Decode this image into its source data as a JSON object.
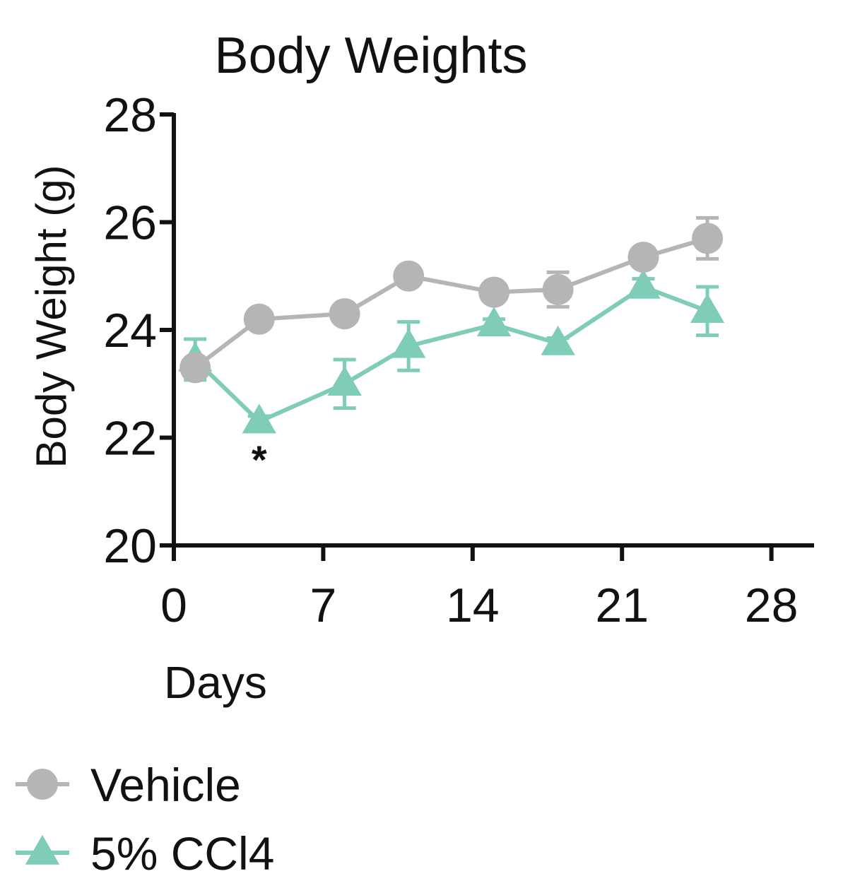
{
  "chart_data": {
    "type": "line",
    "title": "Body Weights",
    "xlabel": "Days",
    "ylabel": "Body Weight (g)",
    "xlim": [
      0,
      30
    ],
    "ylim": [
      20,
      28
    ],
    "x_ticks": [
      0,
      7,
      14,
      21,
      28
    ],
    "y_ticks": [
      20,
      22,
      24,
      26,
      28
    ],
    "series": [
      {
        "name": "Vehicle",
        "marker": "circle",
        "color": "#b5b5b5",
        "x": [
          1,
          4,
          8,
          11,
          15,
          18,
          22,
          25
        ],
        "values": [
          23.3,
          24.2,
          24.3,
          25.0,
          24.7,
          24.75,
          25.35,
          25.7
        ],
        "errors": [
          0.12,
          0.1,
          0.12,
          0.1,
          0.1,
          0.32,
          0.12,
          0.38
        ]
      },
      {
        "name": "5% CCl4",
        "marker": "triangle",
        "color": "#7fcdb8",
        "x": [
          1,
          4,
          8,
          11,
          15,
          18,
          22,
          25
        ],
        "values": [
          23.45,
          22.3,
          23.0,
          23.7,
          24.1,
          23.75,
          24.8,
          24.35
        ],
        "errors": [
          0.38,
          0.1,
          0.45,
          0.45,
          0.1,
          0.1,
          0.15,
          0.45
        ]
      }
    ],
    "annotations": [
      {
        "text": "*",
        "x": 4,
        "y": 21.6
      }
    ]
  }
}
